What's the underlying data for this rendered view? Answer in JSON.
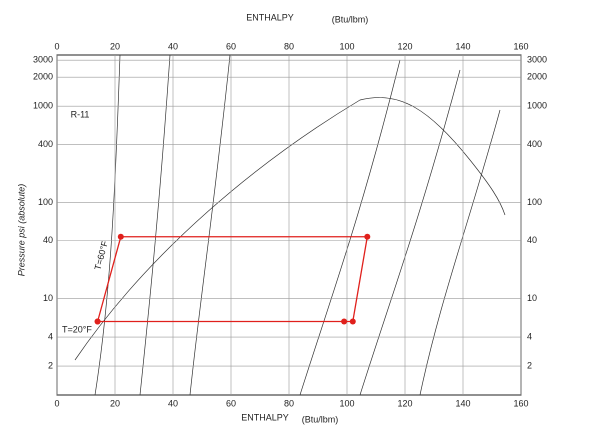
{
  "chart_data": {
    "type": "line",
    "title": "R-11",
    "xlabel": "ENTHALPY",
    "xunit": "(Btu/lbm)",
    "ylabel": "Pressure psi (absolute)",
    "annotations": [
      "T=20°F",
      "T=60°F"
    ],
    "x": [
      14,
      22,
      107,
      102,
      99,
      14
    ],
    "series": [
      {
        "color": "#e0201c",
        "values": [
          5.8,
          44,
          44,
          5.8,
          5.8,
          5.8
        ]
      }
    ],
    "xlim": [
      0,
      160
    ],
    "xticks": [
      0,
      20,
      40,
      60,
      80,
      100,
      120,
      140,
      160
    ],
    "ylim": [
      1,
      3400
    ],
    "yticks": [
      2,
      4,
      10,
      40,
      100,
      400,
      1000,
      2000,
      3000
    ],
    "log_y": true,
    "grid": true
  }
}
